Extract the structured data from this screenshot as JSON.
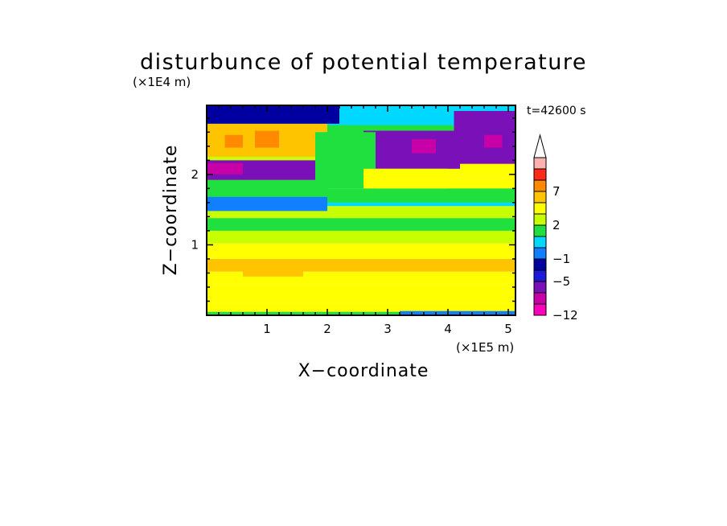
{
  "chart_data": {
    "type": "heatmap",
    "title": "disturbunce of potential temperature",
    "xlabel": "X−coordinate",
    "ylabel": "Z−coordinate",
    "x_unit": "(×1E5 m)",
    "y_unit": "(×1E4 m)",
    "time_label": "t=42600 s",
    "xlim": [
      0,
      5.12
    ],
    "ylim": [
      0,
      2.98
    ],
    "x_ticks": [
      {
        "value": 1,
        "label": "1"
      },
      {
        "value": 2,
        "label": "2"
      },
      {
        "value": 3,
        "label": "3"
      },
      {
        "value": 4,
        "label": "4"
      },
      {
        "value": 5,
        "label": "5"
      }
    ],
    "y_ticks": [
      {
        "value": 1,
        "label": "1"
      },
      {
        "value": 2,
        "label": "2"
      }
    ],
    "colorbar": {
      "levels": [
        -12,
        -10,
        -8,
        -5,
        -3,
        -1,
        0,
        1,
        2,
        3,
        5,
        7,
        9,
        11
      ],
      "colors": [
        "#ff00bb",
        "#c800a8",
        "#7a10b8",
        "#1c1cd8",
        "#0000a0",
        "#1080ff",
        "#00d8ff",
        "#20e040",
        "#c8ff00",
        "#ffff00",
        "#ffc400",
        "#ff8a00",
        "#ff2a18",
        "#ffb0b0"
      ],
      "extend": "max",
      "labels": [
        {
          "value": -12,
          "label": "−12"
        },
        {
          "value": -5,
          "label": "−5"
        },
        {
          "value": -1,
          "label": "−1"
        },
        {
          "value": 2,
          "label": "2"
        },
        {
          "value": 7,
          "label": "7"
        }
      ]
    },
    "bands": [
      {
        "z_min": 0.0,
        "z_max": 0.05,
        "value": 1.2
      },
      {
        "z_min": 0.05,
        "z_max": 0.18,
        "value": 3.0
      },
      {
        "z_min": 0.18,
        "z_max": 0.45,
        "value": 3.6
      },
      {
        "z_min": 0.45,
        "z_max": 0.62,
        "value": 4.8
      },
      {
        "z_min": 0.62,
        "z_max": 0.8,
        "value": 5.4
      },
      {
        "z_min": 0.8,
        "z_max": 1.02,
        "value": 3.5
      },
      {
        "z_min": 1.02,
        "z_max": 1.2,
        "value": 2.6
      },
      {
        "z_min": 1.2,
        "z_max": 1.38,
        "value": 1.6
      },
      {
        "z_min": 1.38,
        "z_max": 1.55,
        "value": 2.4
      },
      {
        "z_min": 1.55,
        "z_max": 1.72,
        "value": 0.6
      },
      {
        "z_min": 1.72,
        "z_max": 1.95,
        "value": 3.2
      },
      {
        "z_min": 1.95,
        "z_max": 2.2,
        "value": 4.2
      },
      {
        "z_min": 2.2,
        "z_max": 2.42,
        "value": 2.5
      },
      {
        "z_min": 2.42,
        "z_max": 2.7,
        "value": 1.0
      },
      {
        "z_min": 2.7,
        "z_max": 2.98,
        "value": 0.2
      }
    ],
    "features": [
      {
        "x0": 0.0,
        "x1": 2.0,
        "z0": 2.25,
        "z1": 2.72,
        "value": 5.5
      },
      {
        "x0": 0.3,
        "x1": 0.6,
        "z0": 2.38,
        "z1": 2.56,
        "value": 8.0
      },
      {
        "x0": 0.8,
        "x1": 1.2,
        "z0": 2.38,
        "z1": 2.62,
        "value": 8.0
      },
      {
        "x0": 0.0,
        "x1": 2.0,
        "z0": 1.92,
        "z1": 2.2,
        "value": -5.5
      },
      {
        "x0": 0.0,
        "x1": 0.6,
        "z0": 2.0,
        "z1": 2.16,
        "value": -9.0
      },
      {
        "x0": 0.0,
        "x1": 2.0,
        "z0": 1.68,
        "z1": 1.92,
        "value": 1.6
      },
      {
        "x0": 0.0,
        "x1": 2.0,
        "z0": 1.48,
        "z1": 1.68,
        "value": -0.5
      },
      {
        "x0": 2.6,
        "x1": 4.2,
        "z0": 2.08,
        "z1": 2.62,
        "value": -6.0
      },
      {
        "x0": 3.4,
        "x1": 3.8,
        "z0": 2.3,
        "z1": 2.5,
        "value": -9.0
      },
      {
        "x0": 4.1,
        "x1": 5.12,
        "z0": 2.15,
        "z1": 2.9,
        "value": -5.5
      },
      {
        "x0": 4.6,
        "x1": 4.9,
        "z0": 2.38,
        "z1": 2.56,
        "value": -9.0
      },
      {
        "x0": 0.0,
        "x1": 2.2,
        "z0": 2.72,
        "z1": 2.98,
        "value": -3.0
      },
      {
        "x0": 1.8,
        "x1": 2.8,
        "z0": 1.8,
        "z1": 2.6,
        "value": 1.5
      },
      {
        "x0": 2.0,
        "x1": 5.12,
        "z0": 1.6,
        "z1": 1.8,
        "value": 1.6
      },
      {
        "x0": 2.6,
        "x1": 4.0,
        "z0": 1.8,
        "z1": 2.08,
        "value": 4.5
      },
      {
        "x0": 0.6,
        "x1": 1.6,
        "z0": 0.55,
        "z1": 0.75,
        "value": 6.0
      },
      {
        "x0": 3.2,
        "x1": 5.12,
        "z0": 0.0,
        "z1": 0.06,
        "value": -0.5
      }
    ]
  }
}
